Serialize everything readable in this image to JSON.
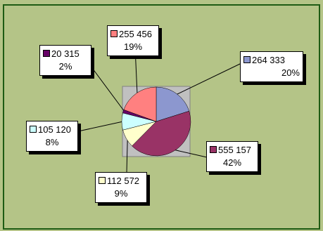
{
  "chart_data": {
    "type": "pie",
    "title": "",
    "legend": "none",
    "slices": [
      {
        "value_label": "264 333",
        "value": 264333,
        "percent_label": "20%",
        "percent": 20,
        "color": "#8c97cf"
      },
      {
        "value_label": "555 157",
        "value": 555157,
        "percent_label": "42%",
        "percent": 42,
        "color": "#993366"
      },
      {
        "value_label": "112 572",
        "value": 112572,
        "percent_label": "9%",
        "percent": 9,
        "color": "#ffffcc"
      },
      {
        "value_label": "105 120",
        "value": 105120,
        "percent_label": "8%",
        "percent": 8,
        "color": "#ccffff"
      },
      {
        "value_label": "20 315",
        "value": 20315,
        "percent_label": "2%",
        "percent": 2,
        "color": "#660066"
      },
      {
        "value_label": "255 456",
        "value": 255456,
        "percent_label": "19%",
        "percent": 19,
        "color": "#ff8080"
      }
    ],
    "colors": {
      "chart_background": "#b4c487",
      "plot_area_background": "#c0c0c0",
      "border": "#1e5c14"
    }
  }
}
